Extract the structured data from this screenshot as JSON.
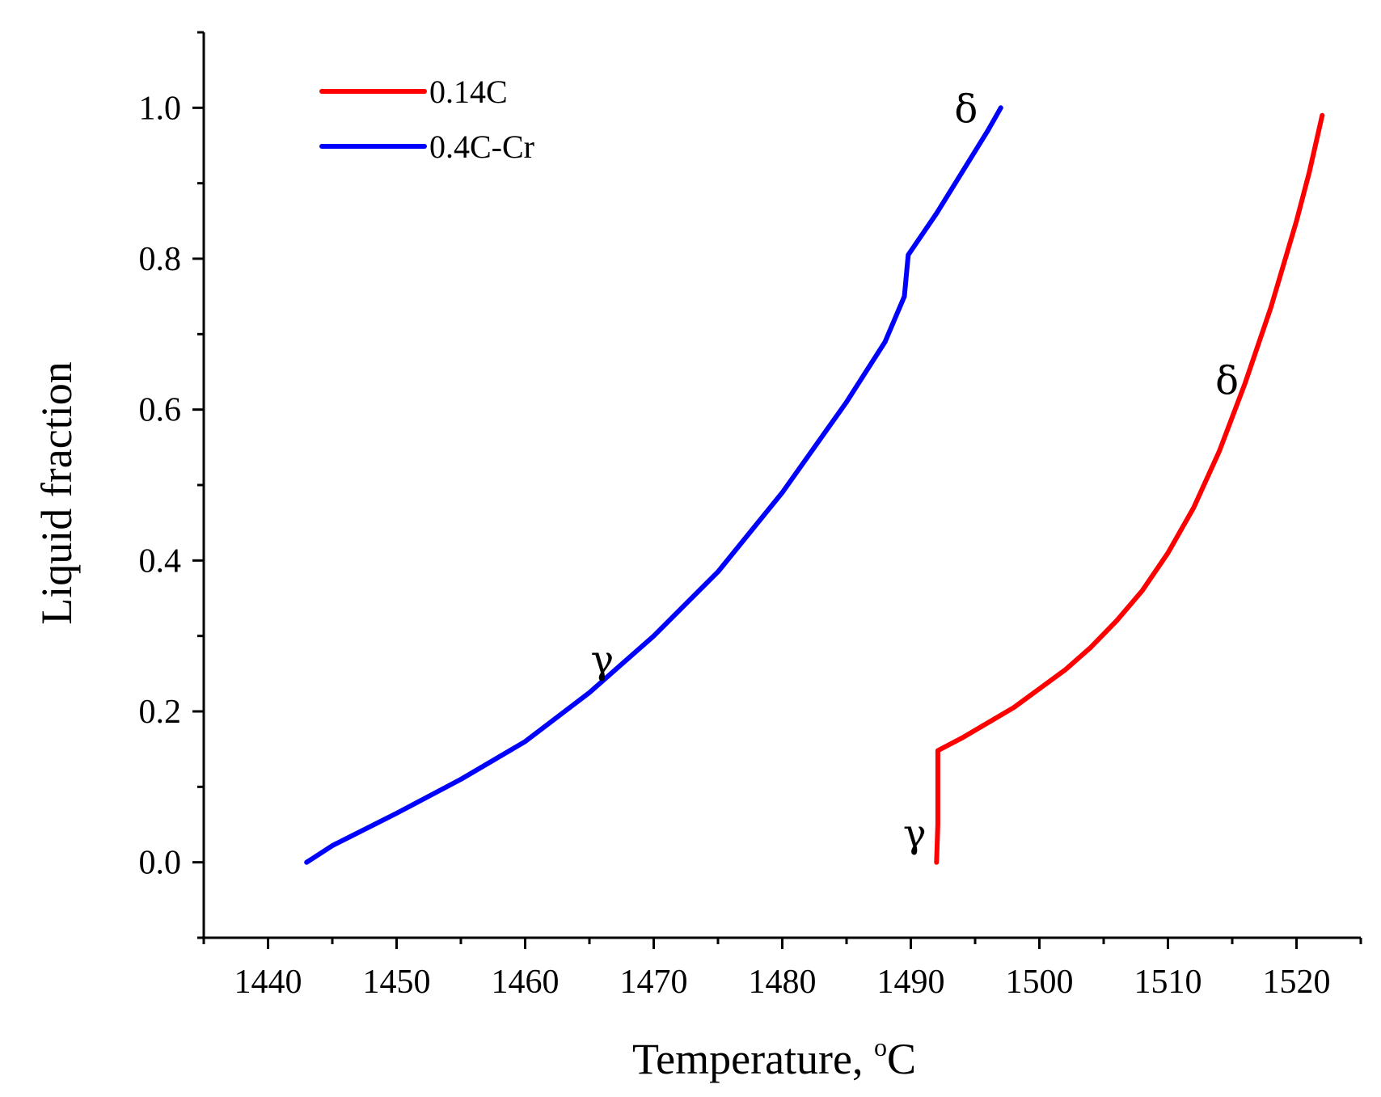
{
  "chart_data": {
    "type": "line",
    "title": "",
    "xlabel": "Temperature, ",
    "xlabel_unit_sup": "o",
    "xlabel_unit": "C",
    "ylabel": "Liquid fraction",
    "xlim": [
      1435,
      1525
    ],
    "ylim": [
      -0.1,
      1.1
    ],
    "x_ticks": [
      1440,
      1450,
      1460,
      1470,
      1480,
      1490,
      1500,
      1510,
      1520
    ],
    "x_tick_labels": [
      "1440",
      "1450",
      "1460",
      "1470",
      "1480",
      "1490",
      "1500",
      "1510",
      "1520"
    ],
    "y_ticks": [
      0.0,
      0.2,
      0.4,
      0.6,
      0.8,
      1.0
    ],
    "y_tick_labels": [
      "0.0",
      "0.2",
      "0.4",
      "0.6",
      "0.8",
      "1.0"
    ],
    "legend_position": "top-left",
    "series": [
      {
        "name": "0.14C",
        "color": "#ff0000",
        "points": [
          [
            1492.0,
            0.0
          ],
          [
            1492.1,
            0.05
          ],
          [
            1492.1,
            0.148
          ],
          [
            1494,
            0.165
          ],
          [
            1496,
            0.185
          ],
          [
            1498,
            0.205
          ],
          [
            1500,
            0.23
          ],
          [
            1502,
            0.255
          ],
          [
            1504,
            0.285
          ],
          [
            1506,
            0.32
          ],
          [
            1508,
            0.36
          ],
          [
            1510,
            0.41
          ],
          [
            1512,
            0.47
          ],
          [
            1514,
            0.545
          ],
          [
            1516,
            0.635
          ],
          [
            1518,
            0.735
          ],
          [
            1520,
            0.85
          ],
          [
            1521,
            0.915
          ],
          [
            1522,
            0.99
          ]
        ]
      },
      {
        "name": "0.4C-Cr",
        "color": "#0000ff",
        "points": [
          [
            1443,
            0.0
          ],
          [
            1445,
            0.022
          ],
          [
            1450,
            0.065
          ],
          [
            1455,
            0.11
          ],
          [
            1460,
            0.16
          ],
          [
            1465,
            0.225
          ],
          [
            1470,
            0.3
          ],
          [
            1475,
            0.385
          ],
          [
            1480,
            0.49
          ],
          [
            1485,
            0.61
          ],
          [
            1488,
            0.69
          ],
          [
            1489.5,
            0.75
          ],
          [
            1489.8,
            0.805
          ],
          [
            1492,
            0.86
          ],
          [
            1494,
            0.915
          ],
          [
            1496,
            0.97
          ],
          [
            1497,
            1.0
          ]
        ]
      }
    ],
    "annotations": [
      {
        "text": "δ",
        "x": 1494.3,
        "y": 1.0,
        "series": "0.4C-Cr"
      },
      {
        "text": "γ",
        "x": 1466,
        "y": 0.27,
        "series": "0.4C-Cr"
      },
      {
        "text": "δ",
        "x": 1514.6,
        "y": 0.64,
        "series": "0.14C"
      },
      {
        "text": "γ",
        "x": 1490.3,
        "y": 0.04,
        "series": "0.14C"
      }
    ]
  }
}
